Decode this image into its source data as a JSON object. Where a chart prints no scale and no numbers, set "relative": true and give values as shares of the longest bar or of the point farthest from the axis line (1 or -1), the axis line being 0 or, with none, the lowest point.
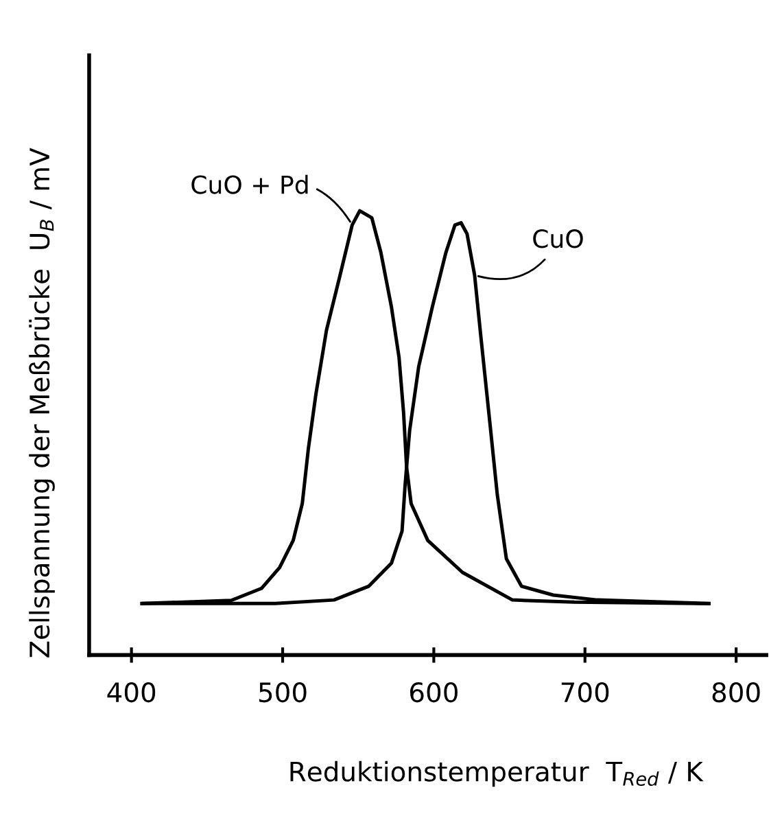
{
  "chart_data": {
    "type": "line",
    "relative": true,
    "xlabel": "Reduktionstemperatur  T$_{Red}$ / K",
    "ylabel": "Zellspannung der Meßbrücke  U$_{B}$ / mV",
    "xlim": [
      372,
      820
    ],
    "xticks": [
      400,
      500,
      600,
      700,
      800
    ],
    "grid": false,
    "legend": false,
    "marker": "none",
    "line_style": "solid",
    "series": [
      {
        "name": "CuO + Pd",
        "color": "#000000",
        "x": [
          407,
          466,
          486,
          498,
          507,
          513,
          517,
          522,
          529,
          538,
          546,
          551,
          559,
          565,
          572,
          577,
          580,
          582,
          585,
          596,
          619,
          652,
          693,
          782
        ],
        "values": [
          0.116,
          0.123,
          0.15,
          0.197,
          0.258,
          0.341,
          0.464,
          0.587,
          0.731,
          0.855,
          0.968,
          1,
          0.984,
          0.906,
          0.783,
          0.67,
          0.546,
          0.423,
          0.341,
          0.258,
          0.186,
          0.124,
          0.119,
          0.116
        ]
      },
      {
        "name": "CuO",
        "color": "#000000",
        "x": [
          407,
          495,
          534,
          557,
          572,
          579,
          581,
          584,
          590,
          599,
          608,
          614,
          618,
          622,
          627,
          631,
          637,
          642,
          648,
          658,
          679,
          708,
          782
        ],
        "values": [
          0.116,
          0.116,
          0.124,
          0.155,
          0.207,
          0.279,
          0.382,
          0.505,
          0.649,
          0.783,
          0.906,
          0.968,
          0.973,
          0.948,
          0.855,
          0.721,
          0.526,
          0.361,
          0.217,
          0.155,
          0.135,
          0.124,
          0.116
        ]
      }
    ]
  }
}
